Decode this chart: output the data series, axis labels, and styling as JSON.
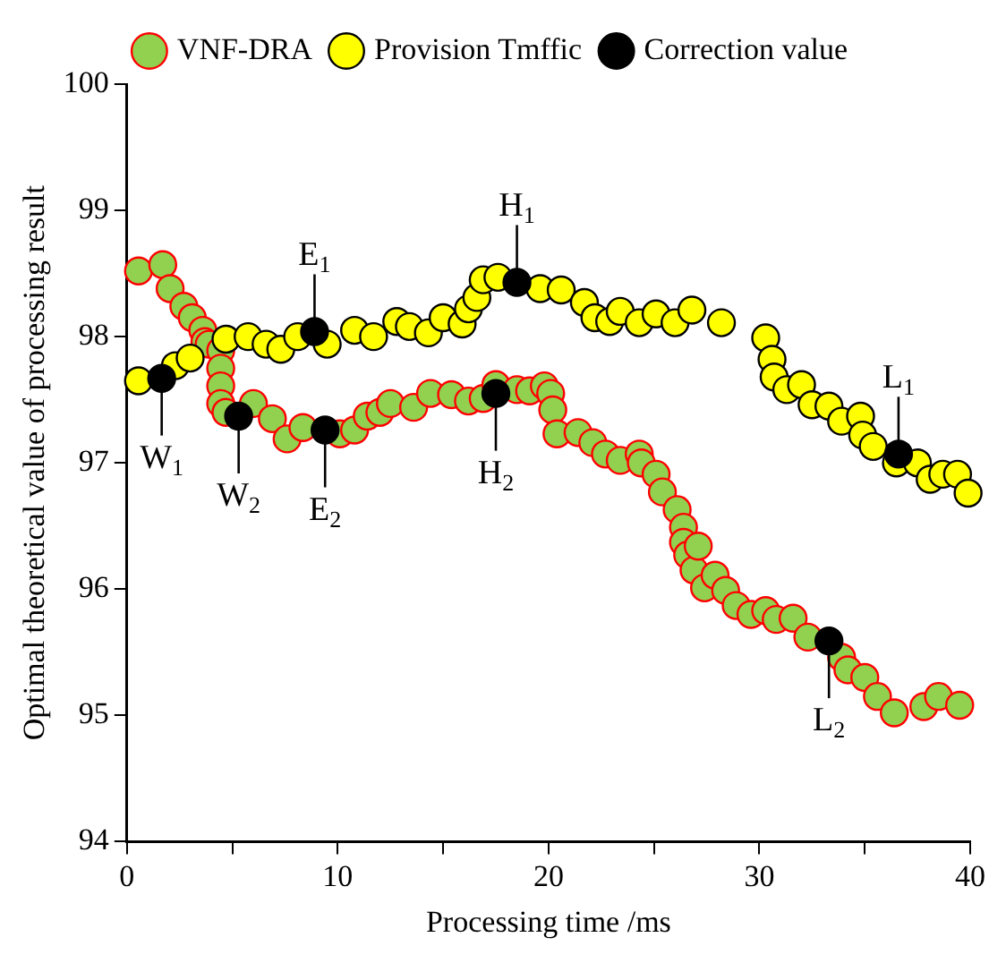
{
  "chart_data": {
    "type": "scatter",
    "xlabel": "Processing time /ms",
    "ylabel": "Optimal theoretical value of processing result",
    "xlim": [
      0,
      40
    ],
    "ylim": [
      94,
      100
    ],
    "xticks": [
      0,
      {
        "value": 5,
        "label": null
      },
      10,
      {
        "value": 15,
        "label": null
      },
      20,
      {
        "value": 25,
        "label": null
      },
      30,
      {
        "value": 35,
        "label": null
      },
      40
    ],
    "yticks": [
      94,
      95,
      96,
      97,
      98,
      99,
      100
    ],
    "grid": false,
    "legend": "top",
    "marker": "circle",
    "series": [
      {
        "name": "VNF-DRA",
        "color": "#92d050",
        "x": [
          0.55,
          1.7,
          2.05,
          2.7,
          3.1,
          3.6,
          3.7,
          3.9,
          4.45,
          4.45,
          4.45,
          4.45,
          4.7,
          6.0,
          6.9,
          7.6,
          8.35,
          10.1,
          10.8,
          11.4,
          12.0,
          12.5,
          13.6,
          14.4,
          15.4,
          16.2,
          16.9,
          17.5,
          18.5,
          19.1,
          19.8,
          20.1,
          20.2,
          20.4,
          21.4,
          22.1,
          22.7,
          23.4,
          24.3,
          24.4,
          25.1,
          25.4,
          26.1,
          26.4,
          26.4,
          26.6,
          26.9,
          27.1,
          27.4,
          27.9,
          28.4,
          28.9,
          29.6,
          30.3,
          30.8,
          31.6,
          32.3,
          33.9,
          34.2,
          35.0,
          35.6,
          36.4,
          37.8,
          38.5,
          39.5
        ],
        "values": [
          98.52,
          98.57,
          98.38,
          98.24,
          98.15,
          98.05,
          97.96,
          97.94,
          97.89,
          97.75,
          97.61,
          97.47,
          97.4,
          97.47,
          97.35,
          97.19,
          97.28,
          97.23,
          97.26,
          97.37,
          97.4,
          97.47,
          97.44,
          97.55,
          97.54,
          97.49,
          97.51,
          97.62,
          97.58,
          97.57,
          97.61,
          97.55,
          97.42,
          97.23,
          97.24,
          97.16,
          97.07,
          97.02,
          97.07,
          97.0,
          96.91,
          96.77,
          96.63,
          96.49,
          96.37,
          96.27,
          96.15,
          96.34,
          96.01,
          96.11,
          95.99,
          95.87,
          95.8,
          95.83,
          95.76,
          95.77,
          95.62,
          95.46,
          95.36,
          95.3,
          95.15,
          95.02,
          95.07,
          95.15,
          95.08
        ]
      },
      {
        "name": "Provision Tmffic",
        "color": "#ffff00",
        "x": [
          0.55,
          2.3,
          3.0,
          4.7,
          5.75,
          6.6,
          7.3,
          8.1,
          9.5,
          10.8,
          11.7,
          12.8,
          13.4,
          14.3,
          15.0,
          15.9,
          16.2,
          16.6,
          16.9,
          17.6,
          19.6,
          20.6,
          21.7,
          22.2,
          22.9,
          23.4,
          24.3,
          25.1,
          26.0,
          26.8,
          28.2,
          30.3,
          30.6,
          30.7,
          31.3,
          32.0,
          32.5,
          33.3,
          33.9,
          34.8,
          34.9,
          35.4,
          36.5,
          37.5,
          38.1,
          38.7,
          39.4,
          39.9
        ],
        "values": [
          97.65,
          97.77,
          97.83,
          97.98,
          98.0,
          97.94,
          97.9,
          98.0,
          97.94,
          98.05,
          98.0,
          98.12,
          98.08,
          98.03,
          98.15,
          98.1,
          98.22,
          98.31,
          98.45,
          98.47,
          98.38,
          98.37,
          98.27,
          98.15,
          98.12,
          98.2,
          98.11,
          98.18,
          98.11,
          98.21,
          98.11,
          97.99,
          97.82,
          97.68,
          97.58,
          97.62,
          97.46,
          97.45,
          97.33,
          97.37,
          97.22,
          97.13,
          97.0,
          97.0,
          96.87,
          96.91,
          96.91,
          96.76
        ]
      },
      {
        "name": "Correction value",
        "color": "#000000",
        "x": [
          1.65,
          5.3,
          8.9,
          9.4,
          18.5,
          17.5,
          36.6,
          33.3
        ],
        "values": [
          97.67,
          97.37,
          98.04,
          97.26,
          98.43,
          97.55,
          97.07,
          95.59
        ]
      }
    ],
    "annotations": [
      {
        "text": "W$_{1}$",
        "x": 1.65,
        "y": 97.67
      },
      {
        "text": "W$_{2}$",
        "x": 5.3,
        "y": 97.37
      },
      {
        "text": "E$_{1}$",
        "x": 8.9,
        "y": 98.04
      },
      {
        "text": "E$_{2}$",
        "x": 9.4,
        "y": 97.26
      },
      {
        "text": "H$_{1}$",
        "x": 18.5,
        "y": 98.43
      },
      {
        "text": "H$_{2}$",
        "x": 17.5,
        "y": 97.55
      },
      {
        "text": "L$_{1}$",
        "x": 36.6,
        "y": 97.07
      },
      {
        "text": "L$_{2}$",
        "x": 33.3,
        "y": 95.59
      }
    ]
  }
}
